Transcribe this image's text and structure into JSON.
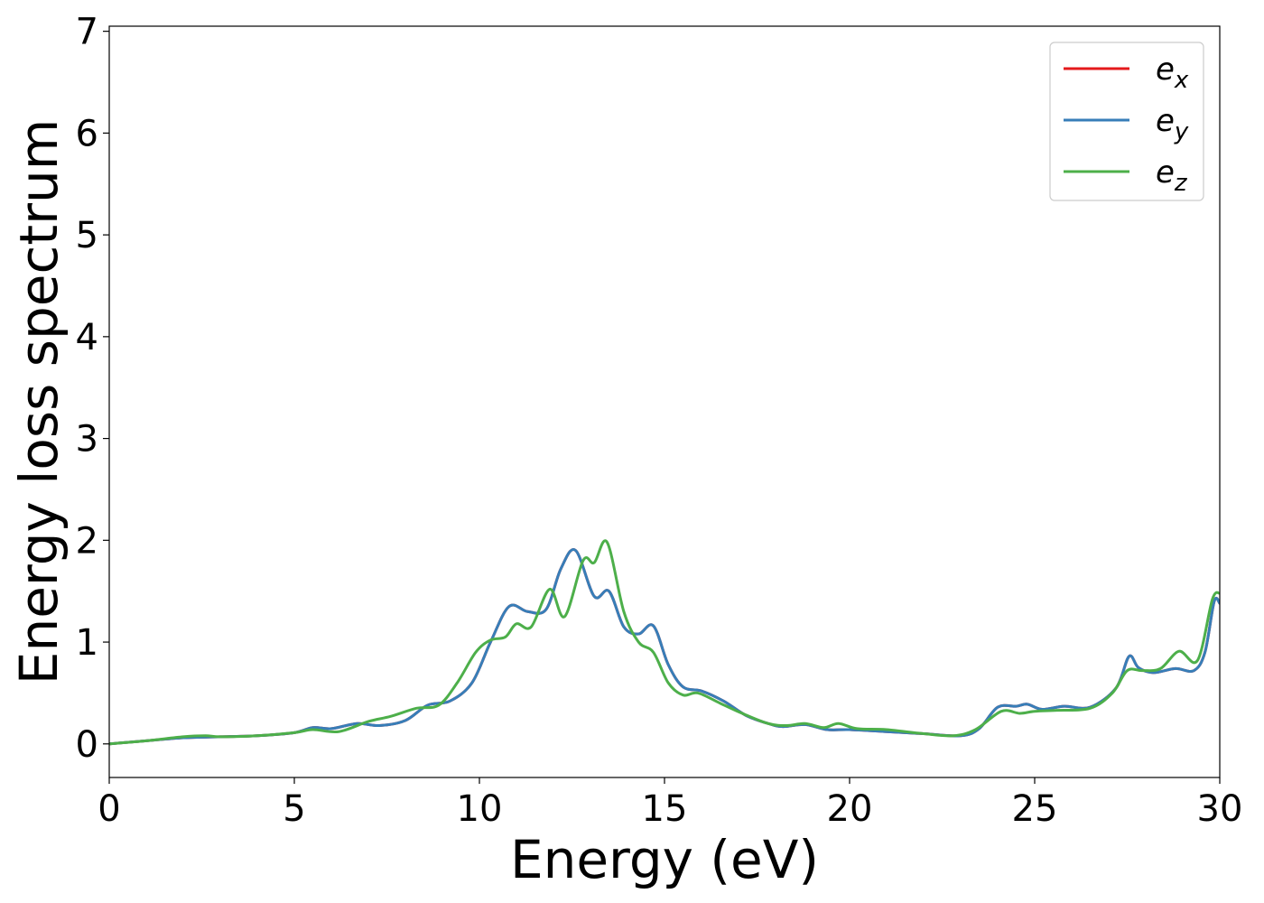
{
  "chart_data": {
    "type": "line",
    "title": "",
    "xlabel": "Energy (eV)",
    "ylabel": "Energy loss spectrum",
    "xlim": [
      0,
      30
    ],
    "ylim": [
      -0.33,
      7.05
    ],
    "xticks": [
      0,
      5,
      10,
      15,
      20,
      25,
      30
    ],
    "yticks": [
      0,
      1,
      2,
      3,
      4,
      5,
      6,
      7
    ],
    "grid": false,
    "legend_position": "top-right",
    "series": [
      {
        "name": "e_x",
        "legend_base": "e",
        "legend_sub": "x",
        "color": "#e41a1c",
        "x": [
          0,
          1,
          2,
          3,
          4,
          5,
          5.5,
          6,
          6.7,
          7.3,
          8,
          8.6,
          9.2,
          9.8,
          10.3,
          10.8,
          11.3,
          11.8,
          12.2,
          12.6,
          13.1,
          13.5,
          13.9,
          14.3,
          14.7,
          15.1,
          15.5,
          16,
          16.6,
          17.2,
          17.8,
          18.2,
          18.8,
          19.4,
          20,
          21,
          22,
          23,
          23.5,
          24,
          24.5,
          24.8,
          25.2,
          25.8,
          26.5,
          27.2,
          27.55,
          27.8,
          28.2,
          28.8,
          29.3,
          29.6,
          29.85,
          30
        ],
        "y": [
          0,
          0.03,
          0.06,
          0.07,
          0.08,
          0.11,
          0.16,
          0.15,
          0.2,
          0.18,
          0.23,
          0.38,
          0.42,
          0.6,
          1.0,
          1.35,
          1.3,
          1.32,
          1.72,
          1.9,
          1.45,
          1.5,
          1.15,
          1.08,
          1.16,
          0.78,
          0.56,
          0.52,
          0.42,
          0.28,
          0.2,
          0.17,
          0.19,
          0.14,
          0.14,
          0.12,
          0.1,
          0.08,
          0.15,
          0.36,
          0.37,
          0.39,
          0.34,
          0.37,
          0.36,
          0.55,
          0.86,
          0.75,
          0.7,
          0.74,
          0.72,
          0.9,
          1.4,
          1.38
        ]
      },
      {
        "name": "e_y",
        "legend_base": "e",
        "legend_sub": "y",
        "color": "#377eb8",
        "x": [
          0,
          1,
          2,
          3,
          4,
          5,
          5.5,
          6,
          6.7,
          7.3,
          8,
          8.6,
          9.2,
          9.8,
          10.3,
          10.8,
          11.3,
          11.8,
          12.2,
          12.6,
          13.1,
          13.5,
          13.9,
          14.3,
          14.7,
          15.1,
          15.5,
          16,
          16.6,
          17.2,
          17.8,
          18.2,
          18.8,
          19.4,
          20,
          21,
          22,
          23,
          23.5,
          24,
          24.5,
          24.8,
          25.2,
          25.8,
          26.5,
          27.2,
          27.55,
          27.8,
          28.2,
          28.8,
          29.3,
          29.6,
          29.85,
          30
        ],
        "y": [
          0,
          0.03,
          0.06,
          0.07,
          0.08,
          0.11,
          0.16,
          0.15,
          0.2,
          0.18,
          0.23,
          0.38,
          0.42,
          0.6,
          1.0,
          1.35,
          1.3,
          1.32,
          1.72,
          1.9,
          1.45,
          1.5,
          1.15,
          1.08,
          1.16,
          0.78,
          0.56,
          0.52,
          0.42,
          0.28,
          0.2,
          0.17,
          0.19,
          0.14,
          0.14,
          0.12,
          0.1,
          0.08,
          0.15,
          0.36,
          0.37,
          0.39,
          0.34,
          0.37,
          0.36,
          0.55,
          0.86,
          0.75,
          0.7,
          0.74,
          0.72,
          0.9,
          1.4,
          1.38
        ]
      },
      {
        "name": "e_z",
        "legend_base": "e",
        "legend_sub": "z",
        "color": "#4daf4a",
        "x": [
          0,
          1,
          2,
          2.6,
          3,
          4,
          5,
          5.5,
          6.2,
          7,
          7.6,
          8.3,
          8.9,
          9.4,
          9.9,
          10.3,
          10.7,
          11,
          11.4,
          11.9,
          12.3,
          12.8,
          13.1,
          13.45,
          13.9,
          14.3,
          14.7,
          15.1,
          15.5,
          15.9,
          16.5,
          17.1,
          17.8,
          18.3,
          18.8,
          19.3,
          19.7,
          20.2,
          21,
          22,
          22.8,
          23.4,
          24.1,
          24.6,
          25,
          25.6,
          26.5,
          27.1,
          27.5,
          27.9,
          28.4,
          28.9,
          29.4,
          29.8,
          30
        ],
        "y": [
          0,
          0.03,
          0.07,
          0.08,
          0.07,
          0.08,
          0.11,
          0.14,
          0.12,
          0.22,
          0.27,
          0.35,
          0.38,
          0.6,
          0.9,
          1.02,
          1.05,
          1.18,
          1.15,
          1.52,
          1.25,
          1.8,
          1.78,
          1.98,
          1.3,
          1.0,
          0.9,
          0.6,
          0.48,
          0.5,
          0.4,
          0.3,
          0.2,
          0.18,
          0.2,
          0.16,
          0.2,
          0.15,
          0.14,
          0.1,
          0.08,
          0.14,
          0.32,
          0.3,
          0.32,
          0.33,
          0.35,
          0.5,
          0.72,
          0.72,
          0.74,
          0.91,
          0.82,
          1.42,
          1.48
        ]
      }
    ]
  }
}
